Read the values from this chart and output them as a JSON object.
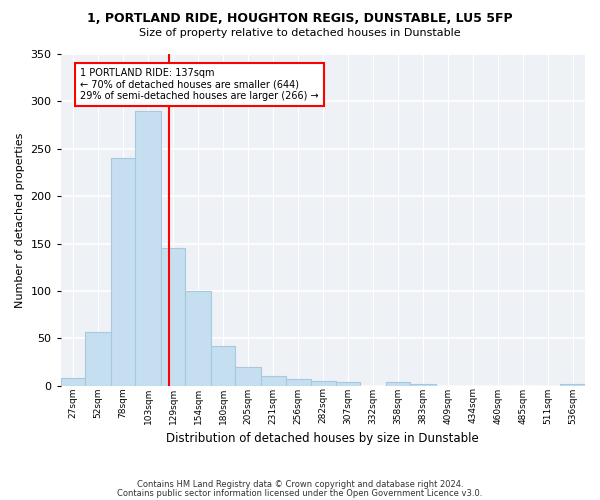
{
  "title1": "1, PORTLAND RIDE, HOUGHTON REGIS, DUNSTABLE, LU5 5FP",
  "title2": "Size of property relative to detached houses in Dunstable",
  "xlabel": "Distribution of detached houses by size in Dunstable",
  "ylabel": "Number of detached properties",
  "bin_labels": [
    "27sqm",
    "52sqm",
    "78sqm",
    "103sqm",
    "129sqm",
    "154sqm",
    "180sqm",
    "205sqm",
    "231sqm",
    "256sqm",
    "282sqm",
    "307sqm",
    "332sqm",
    "358sqm",
    "383sqm",
    "409sqm",
    "434sqm",
    "460sqm",
    "485sqm",
    "511sqm",
    "536sqm"
  ],
  "bin_edges": [
    27,
    52,
    78,
    103,
    129,
    154,
    180,
    205,
    231,
    256,
    282,
    307,
    332,
    358,
    383,
    409,
    434,
    460,
    485,
    511,
    536,
    561
  ],
  "bar_heights": [
    8,
    57,
    240,
    290,
    145,
    100,
    42,
    20,
    10,
    7,
    5,
    4,
    0,
    4,
    2,
    0,
    0,
    0,
    0,
    0,
    2
  ],
  "bar_color": "#c5dff0",
  "bar_edge_color": "#a8c8e0",
  "vline_x": 137,
  "vline_color": "red",
  "annotation_text": "1 PORTLAND RIDE: 137sqm\n← 70% of detached houses are smaller (644)\n29% of semi-detached houses are larger (266) →",
  "annotation_box_color": "white",
  "annotation_box_edge": "red",
  "ylim": [
    0,
    350
  ],
  "yticks": [
    0,
    50,
    100,
    150,
    200,
    250,
    300,
    350
  ],
  "footer1": "Contains HM Land Registry data © Crown copyright and database right 2024.",
  "footer2": "Contains public sector information licensed under the Open Government Licence v3.0.",
  "bg_color": "#eef2f7"
}
